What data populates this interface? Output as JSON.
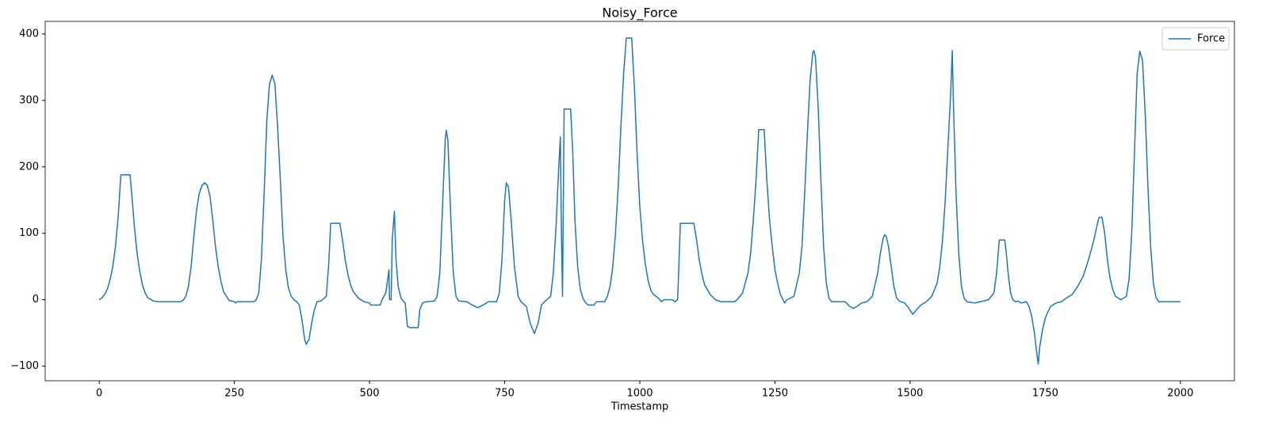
{
  "chart_data": {
    "type": "line",
    "title": "Noisy_Force",
    "xlabel": "Timestamp",
    "x": [
      0,
      5,
      10,
      15,
      20,
      25,
      30,
      35,
      40,
      57,
      60,
      65,
      70,
      75,
      80,
      85,
      90,
      100,
      110,
      150,
      155,
      160,
      165,
      170,
      175,
      180,
      185,
      190,
      195,
      200,
      205,
      210,
      215,
      220,
      225,
      230,
      240,
      250,
      252,
      255,
      285,
      290,
      295,
      300,
      305,
      310,
      315,
      320,
      325,
      330,
      335,
      340,
      345,
      350,
      355,
      360,
      365,
      370,
      375,
      380,
      383,
      388,
      393,
      398,
      403,
      410,
      420,
      425,
      428,
      445,
      450,
      455,
      460,
      465,
      470,
      480,
      490,
      500,
      502,
      520,
      523,
      530,
      536,
      537,
      540,
      542,
      546,
      549,
      553,
      558,
      562,
      566,
      570,
      575,
      590,
      593,
      598,
      605,
      620,
      625,
      630,
      635,
      640,
      642,
      645,
      650,
      655,
      660,
      665,
      680,
      690,
      700,
      710,
      720,
      735,
      740,
      745,
      750,
      753,
      757,
      762,
      768,
      775,
      780,
      790,
      797,
      805,
      812,
      818,
      825,
      835,
      840,
      845,
      850,
      853,
      855,
      857,
      860,
      872,
      876,
      880,
      885,
      890,
      895,
      900,
      905,
      915,
      920,
      935,
      940,
      945,
      950,
      955,
      960,
      965,
      970,
      975,
      985,
      990,
      995,
      1000,
      1005,
      1010,
      1015,
      1020,
      1025,
      1035,
      1040,
      1045,
      1060,
      1065,
      1070,
      1075,
      1100,
      1105,
      1110,
      1115,
      1120,
      1130,
      1140,
      1150,
      1175,
      1180,
      1190,
      1200,
      1205,
      1210,
      1215,
      1220,
      1230,
      1235,
      1240,
      1245,
      1250,
      1255,
      1260,
      1265,
      1268,
      1272,
      1285,
      1295,
      1300,
      1305,
      1310,
      1315,
      1320,
      1322,
      1325,
      1330,
      1335,
      1340,
      1345,
      1350,
      1355,
      1380,
      1388,
      1395,
      1402,
      1410,
      1420,
      1430,
      1440,
      1445,
      1450,
      1453,
      1456,
      1460,
      1465,
      1470,
      1475,
      1480,
      1490,
      1497,
      1505,
      1512,
      1520,
      1530,
      1540,
      1550,
      1555,
      1560,
      1565,
      1570,
      1575,
      1578,
      1580,
      1585,
      1590,
      1595,
      1600,
      1605,
      1620,
      1630,
      1645,
      1655,
      1660,
      1665,
      1675,
      1678,
      1682,
      1686,
      1690,
      1695,
      1700,
      1705,
      1715,
      1720,
      1725,
      1730,
      1735,
      1737,
      1740,
      1745,
      1750,
      1755,
      1760,
      1770,
      1780,
      1790,
      1800,
      1810,
      1820,
      1830,
      1840,
      1848,
      1850,
      1855,
      1860,
      1865,
      1870,
      1875,
      1880,
      1890,
      1900,
      1905,
      1910,
      1915,
      1920,
      1925,
      1930,
      1935,
      1940,
      1945,
      1950,
      1955,
      1960,
      2000
    ],
    "series": [
      {
        "name": "Force",
        "color": "#1f77b4",
        "values": [
          0,
          3,
          8,
          16,
          30,
          50,
          80,
          125,
          188,
          188,
          160,
          110,
          70,
          42,
          22,
          10,
          3,
          -2,
          -3,
          -3,
          -1,
          5,
          20,
          50,
          95,
          135,
          160,
          172,
          176,
          172,
          155,
          120,
          80,
          50,
          28,
          12,
          -1,
          -3,
          -5,
          -3,
          -3,
          -1,
          10,
          60,
          160,
          270,
          325,
          338,
          325,
          260,
          180,
          95,
          45,
          18,
          5,
          0,
          -3,
          -8,
          -30,
          -60,
          -67,
          -60,
          -35,
          -15,
          -3,
          -2,
          5,
          60,
          115,
          115,
          90,
          60,
          38,
          22,
          12,
          2,
          -3,
          -5,
          -8,
          -8,
          0,
          10,
          45,
          0,
          0,
          90,
          133,
          60,
          20,
          3,
          -2,
          -5,
          -40,
          -42,
          -42,
          -15,
          -5,
          -3,
          -2,
          5,
          40,
          140,
          240,
          255,
          240,
          130,
          40,
          5,
          -2,
          -3,
          -8,
          -12,
          -8,
          -3,
          -3,
          10,
          60,
          150,
          176,
          170,
          120,
          50,
          5,
          -3,
          -10,
          -35,
          -51,
          -35,
          -8,
          -2,
          5,
          40,
          110,
          200,
          245,
          100,
          5,
          287,
          287,
          220,
          120,
          50,
          15,
          2,
          -5,
          -8,
          -8,
          -3,
          -3,
          5,
          20,
          50,
          100,
          170,
          260,
          340,
          394,
          394,
          320,
          220,
          140,
          90,
          55,
          30,
          15,
          8,
          2,
          -3,
          0,
          0,
          -3,
          0,
          115,
          115,
          90,
          60,
          38,
          22,
          8,
          0,
          -3,
          -3,
          0,
          10,
          40,
          70,
          120,
          180,
          256,
          256,
          180,
          120,
          80,
          45,
          25,
          8,
          0,
          -5,
          0,
          5,
          40,
          80,
          160,
          250,
          330,
          372,
          375,
          365,
          290,
          180,
          80,
          25,
          2,
          -3,
          -3,
          -10,
          -13,
          -10,
          -5,
          -3,
          5,
          40,
          70,
          92,
          98,
          95,
          80,
          50,
          20,
          3,
          -2,
          -5,
          -12,
          -22,
          -15,
          -8,
          -3,
          5,
          25,
          50,
          90,
          150,
          230,
          310,
          375,
          300,
          160,
          70,
          20,
          2,
          -3,
          -5,
          -3,
          0,
          10,
          40,
          90,
          90,
          70,
          35,
          10,
          0,
          -3,
          -2,
          -5,
          -3,
          -10,
          -25,
          -50,
          -85,
          -97,
          -70,
          -45,
          -28,
          -18,
          -10,
          -5,
          -3,
          3,
          8,
          20,
          35,
          60,
          90,
          120,
          124,
          124,
          100,
          60,
          32,
          15,
          5,
          0,
          5,
          30,
          100,
          220,
          340,
          374,
          360,
          280,
          170,
          80,
          25,
          3,
          -3,
          -3
        ]
      }
    ],
    "xlim": [
      -100,
      2100
    ],
    "ylim": [
      -122,
      419
    ],
    "xticks": [
      0,
      250,
      500,
      750,
      1000,
      1250,
      1500,
      1750,
      2000
    ],
    "yticks": [
      {
        "value": -100,
        "label": "−100"
      },
      0,
      100,
      200,
      300,
      400
    ],
    "legend": "upper right",
    "grid": false
  }
}
